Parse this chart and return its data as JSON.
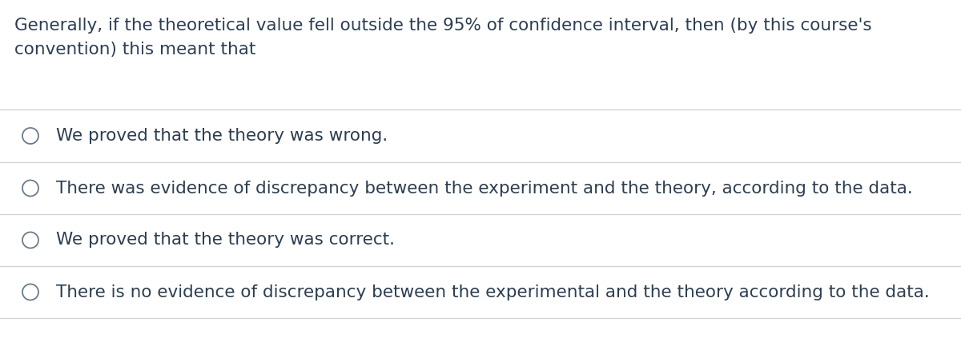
{
  "question_line1": "Generally, if the theoretical value fell outside the 95% of confidence interval, then (by this course's",
  "question_line2": "convention) this meant that",
  "options": [
    "We proved that the theory was wrong.",
    "There was evidence of discrepancy between the experiment and the theory, according to the data.",
    "We proved that the theory was correct.",
    "There is no evidence of discrepancy between the experimental and the theory according to the data."
  ],
  "background_color": "#ffffff",
  "text_color": "#2d3e50",
  "line_color": "#d0d0d0",
  "circle_edge_color": "#6b7b8a",
  "question_fontsize": 15.5,
  "option_fontsize": 15.5,
  "figsize": [
    12.0,
    4.33
  ],
  "dpi": 100
}
